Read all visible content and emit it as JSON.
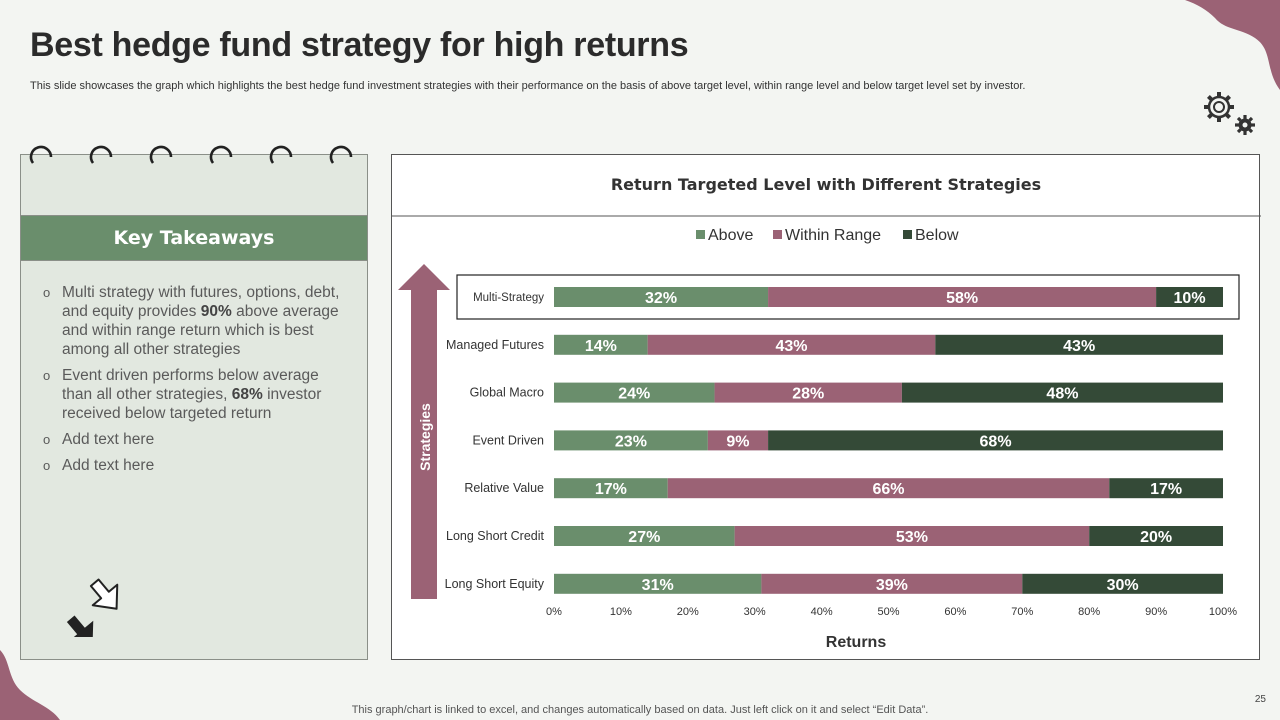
{
  "slide": {
    "title": "Best hedge fund strategy for high returns",
    "subtitle": "This slide showcases the graph which highlights the best hedge fund investment strategies with their performance on the basis of above target level, within range level and below target level set by investor.",
    "footer": "This graph/chart is linked to excel, and changes automatically based on data. Just left click on it and select “Edit Data”.",
    "page_number": "25"
  },
  "takeaways": {
    "header": "Key Takeaways",
    "items": [
      {
        "pre": "Multi strategy with futures, options, debt, and equity provides ",
        "bold": "90%",
        "post": " above average and within range return which is best among all other strategies"
      },
      {
        "pre": "Event driven performs below average than all other strategies, ",
        "bold": "68%",
        "post": " investor received below targeted return"
      },
      {
        "pre": "Add text here",
        "bold": "",
        "post": ""
      },
      {
        "pre": "Add text here",
        "bold": "",
        "post": ""
      }
    ]
  },
  "colors": {
    "above": "#6a8e6c",
    "within": "#9b6275",
    "below": "#344a37",
    "arrow": "#9b6275",
    "accent_blob": "#9b6275"
  },
  "chart_data": {
    "type": "bar",
    "orientation": "horizontal",
    "stacked": true,
    "title": "Return Targeted Level with Different Strategies",
    "xlabel": "Returns",
    "ylabel": "Strategies",
    "xlim": [
      0,
      100
    ],
    "x_ticks": [
      "0%",
      "10%",
      "20%",
      "30%",
      "40%",
      "50%",
      "60%",
      "70%",
      "80%",
      "90%",
      "100%"
    ],
    "legend_position": "top",
    "categories": [
      "Multi-Strategy",
      "Managed Futures",
      "Global Macro",
      "Event Driven",
      "Relative Value",
      "Long Short Credit",
      "Long Short Equity"
    ],
    "highlighted_category": "Multi-Strategy",
    "series": [
      {
        "name": "Above",
        "values": [
          32,
          14,
          24,
          23,
          17,
          27,
          31
        ]
      },
      {
        "name": "Within Range",
        "values": [
          58,
          43,
          28,
          9,
          66,
          53,
          39
        ]
      },
      {
        "name": "Below",
        "values": [
          10,
          43,
          48,
          68,
          17,
          20,
          30
        ]
      }
    ]
  }
}
